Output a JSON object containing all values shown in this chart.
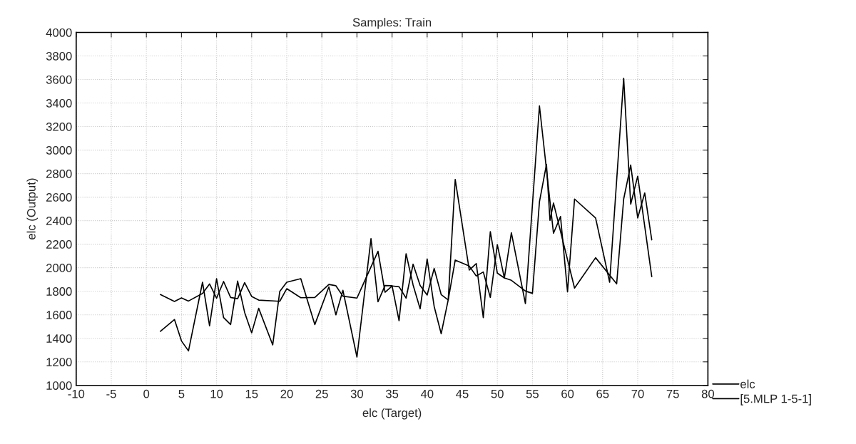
{
  "chart_data": {
    "type": "line",
    "title": "Samples: Train",
    "xlabel": "elc (Target)",
    "ylabel": "elc (Output)",
    "xlim": [
      -10,
      80
    ],
    "xticks": [
      -10,
      -5,
      0,
      5,
      10,
      15,
      20,
      25,
      30,
      35,
      40,
      45,
      50,
      55,
      60,
      65,
      70,
      75,
      80
    ],
    "ylim": [
      1000,
      4000
    ],
    "yticks": [
      1000,
      1200,
      1400,
      1600,
      1800,
      2000,
      2200,
      2400,
      2600,
      2800,
      3000,
      3200,
      3400,
      3600,
      3800,
      4000
    ],
    "grid": true,
    "legend": "bottom right",
    "marker": "none",
    "line_style": "solid",
    "series": [
      {
        "name": "elc",
        "color": "#000000",
        "x": [
          2,
          4,
          5,
          6,
          8,
          9,
          10,
          11,
          12,
          13,
          14,
          15,
          16,
          18,
          19,
          20,
          22,
          24,
          26,
          27,
          28,
          30,
          32,
          33,
          34,
          35,
          36,
          37,
          38,
          39,
          40,
          41,
          42,
          43,
          44,
          46,
          47,
          48,
          49,
          50,
          51,
          52,
          54,
          56,
          58,
          59,
          60,
          61,
          64,
          66,
          68,
          69,
          70,
          72
        ],
        "values": [
          1459,
          1560,
          1378,
          1293,
          1877,
          1507,
          1907,
          1576,
          1517,
          1887,
          1620,
          1447,
          1655,
          1344,
          1798,
          1877,
          1907,
          1517,
          1837,
          1600,
          1808,
          1241,
          2247,
          1711,
          1849,
          1847,
          1550,
          2119,
          1853,
          1651,
          2075,
          1671,
          1439,
          1726,
          2750,
          1980,
          2035,
          1576,
          2307,
          1954,
          1913,
          2297,
          1695,
          3376,
          2293,
          2435,
          1796,
          2584,
          2423,
          1877,
          3610,
          2540,
          2778,
          1924
        ]
      },
      {
        "name": "[5.MLP 1-5-1]",
        "color": "#000000",
        "x": [
          2,
          4,
          5,
          6,
          8,
          9,
          10,
          11,
          12,
          13,
          14,
          15,
          16,
          19,
          20,
          22,
          24,
          26,
          27,
          28,
          30,
          33,
          34,
          35,
          36,
          37,
          38,
          39,
          40,
          41,
          42,
          43,
          44,
          46,
          47,
          48,
          49,
          50,
          51,
          52,
          54,
          55,
          56,
          57,
          57.5,
          58,
          61,
          64,
          67,
          68,
          69,
          70,
          71,
          72
        ],
        "values": [
          1772,
          1714,
          1744,
          1717,
          1782,
          1862,
          1741,
          1883,
          1747,
          1737,
          1873,
          1756,
          1725,
          1715,
          1822,
          1745,
          1747,
          1858,
          1847,
          1758,
          1742,
          2140,
          1792,
          1845,
          1838,
          1742,
          2030,
          1850,
          1768,
          1994,
          1772,
          1726,
          2065,
          2014,
          1930,
          1964,
          1748,
          2196,
          1913,
          1893,
          1802,
          1782,
          2560,
          2879,
          2402,
          2550,
          1827,
          2085,
          1863,
          2584,
          2873,
          2423,
          2635,
          2237
        ]
      }
    ]
  }
}
